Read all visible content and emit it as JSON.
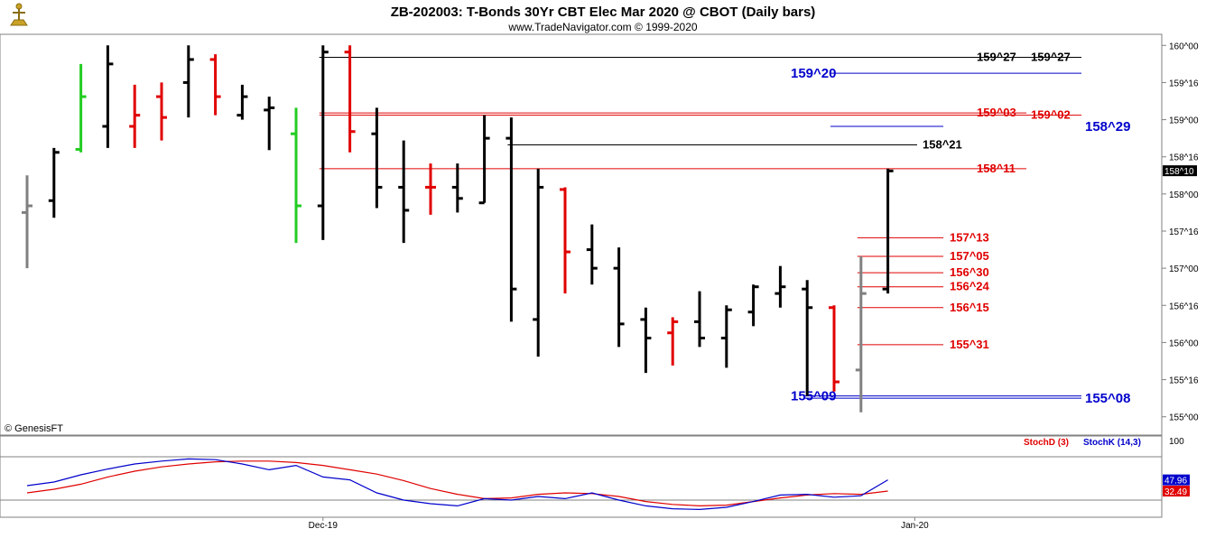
{
  "header": {
    "title": "ZB-202003:  T-Bonds 30Yr CBT Elec Mar 2020 @ CBOT  (Daily bars)",
    "subtitle": "www.TradeNavigator.com © 1999-2020"
  },
  "watermark": "© GenesisFT",
  "colors": {
    "up_bar": "#000000",
    "down_bar": "#e00000",
    "neutral_bar": "#808080",
    "highlight_bar": "#22cc22",
    "level_blue": "#0000cc",
    "level_red": "#e00000",
    "level_black": "#000000",
    "stoch_d": "#e00000",
    "stoch_k": "#0000cc"
  },
  "chart_data": [
    {
      "type": "ohlc",
      "title": "ZB-202003:  T-Bonds 30Yr CBT Elec Mar 2020 @ CBOT  (Daily bars)",
      "ylim": [
        154.875,
        160.125
      ],
      "yticks": [
        {
          "v": 155.0,
          "label": "155^00"
        },
        {
          "v": 155.5,
          "label": "155^16"
        },
        {
          "v": 156.0,
          "label": "156^00"
        },
        {
          "v": 156.5,
          "label": "156^16"
        },
        {
          "v": 157.0,
          "label": "157^00"
        },
        {
          "v": 157.5,
          "label": "157^16"
        },
        {
          "v": 158.0,
          "label": "158^00"
        },
        {
          "v": 158.5,
          "label": "158^16"
        },
        {
          "v": 159.0,
          "label": "159^00"
        },
        {
          "v": 159.5,
          "label": "159^16"
        },
        {
          "v": 160.0,
          "label": "160^00"
        }
      ],
      "xticks": [
        {
          "i": 11,
          "label": "Dec-19"
        },
        {
          "i": 33,
          "label": "Jan-20"
        }
      ],
      "last_price": {
        "v": 158.3125,
        "label": "158^10"
      },
      "bars": [
        {
          "o": 157.75,
          "h": 158.25,
          "l": 157.0,
          "c": 157.84,
          "color": "neutral"
        },
        {
          "o": 157.91,
          "h": 158.62,
          "l": 157.68,
          "c": 158.56,
          "color": "up"
        },
        {
          "o": 158.6,
          "h": 159.75,
          "l": 158.56,
          "c": 159.31,
          "color": "highlight"
        },
        {
          "o": 158.91,
          "h": 160.0,
          "l": 158.62,
          "c": 159.75,
          "color": "up"
        },
        {
          "o": 158.91,
          "h": 159.47,
          "l": 158.62,
          "c": 159.06,
          "color": "down"
        },
        {
          "o": 159.31,
          "h": 159.5,
          "l": 158.72,
          "c": 159.03,
          "color": "down"
        },
        {
          "o": 159.5,
          "h": 160.0,
          "l": 159.03,
          "c": 159.81,
          "color": "up"
        },
        {
          "o": 159.81,
          "h": 159.88,
          "l": 159.06,
          "c": 159.31,
          "color": "down"
        },
        {
          "o": 159.06,
          "h": 159.47,
          "l": 159.0,
          "c": 159.31,
          "color": "up"
        },
        {
          "o": 159.13,
          "h": 159.31,
          "l": 158.59,
          "c": 159.16,
          "color": "up"
        },
        {
          "o": 158.81,
          "h": 159.16,
          "l": 157.34,
          "c": 157.84,
          "color": "highlight"
        },
        {
          "o": 157.84,
          "h": 160.0,
          "l": 157.38,
          "c": 159.91,
          "color": "up"
        },
        {
          "o": 159.91,
          "h": 160.0,
          "l": 158.56,
          "c": 158.84,
          "color": "down"
        },
        {
          "o": 158.81,
          "h": 159.16,
          "l": 157.81,
          "c": 158.09,
          "color": "up"
        },
        {
          "o": 158.09,
          "h": 158.72,
          "l": 157.34,
          "c": 157.78,
          "color": "up"
        },
        {
          "o": 158.09,
          "h": 158.41,
          "l": 157.72,
          "c": 158.09,
          "color": "down"
        },
        {
          "o": 158.09,
          "h": 158.41,
          "l": 157.75,
          "c": 157.94,
          "color": "up"
        },
        {
          "o": 157.88,
          "h": 159.06,
          "l": 157.88,
          "c": 158.75,
          "color": "up"
        },
        {
          "o": 158.75,
          "h": 159.03,
          "l": 156.28,
          "c": 156.72,
          "color": "up"
        },
        {
          "o": 156.31,
          "h": 158.34,
          "l": 155.81,
          "c": 158.09,
          "color": "up"
        },
        {
          "o": 158.06,
          "h": 158.09,
          "l": 156.66,
          "c": 157.22,
          "color": "down"
        },
        {
          "o": 157.25,
          "h": 157.59,
          "l": 156.78,
          "c": 157.0,
          "color": "up"
        },
        {
          "o": 157.0,
          "h": 157.28,
          "l": 155.94,
          "c": 156.25,
          "color": "up"
        },
        {
          "o": 156.31,
          "h": 156.47,
          "l": 155.59,
          "c": 156.06,
          "color": "up"
        },
        {
          "o": 156.13,
          "h": 156.34,
          "l": 155.69,
          "c": 156.28,
          "color": "down"
        },
        {
          "o": 156.28,
          "h": 156.69,
          "l": 155.94,
          "c": 156.06,
          "color": "up"
        },
        {
          "o": 156.06,
          "h": 156.5,
          "l": 155.66,
          "c": 156.44,
          "color": "up"
        },
        {
          "o": 156.41,
          "h": 156.78,
          "l": 156.22,
          "c": 156.75,
          "color": "up"
        },
        {
          "o": 156.66,
          "h": 157.03,
          "l": 156.47,
          "c": 156.75,
          "color": "up"
        },
        {
          "o": 156.72,
          "h": 156.84,
          "l": 155.28,
          "c": 156.47,
          "color": "up"
        },
        {
          "o": 156.47,
          "h": 156.5,
          "l": 155.34,
          "c": 155.47,
          "color": "down"
        },
        {
          "o": 155.63,
          "h": 157.16,
          "l": 155.06,
          "c": 156.66,
          "color": "neutral"
        },
        {
          "o": 156.72,
          "h": 158.34,
          "l": 156.66,
          "c": 158.31,
          "color": "up"
        }
      ],
      "levels": [
        {
          "v": 159.84,
          "label": "159^27",
          "color": "black",
          "x_from_bar": 11,
          "label_pos": "mid"
        },
        {
          "v": 159.84,
          "label": "159^27",
          "color": "black",
          "x_from_bar": 11,
          "label_pos": "end"
        },
        {
          "v": 159.625,
          "label": "159^20",
          "color": "blue",
          "x_from_bar": 30,
          "label_pos": "start"
        },
        {
          "v": 159.09,
          "label": "159^03",
          "color": "red",
          "x_from_bar": 11,
          "label_pos": "mid"
        },
        {
          "v": 159.06,
          "label": "159^02",
          "color": "red",
          "x_from_bar": 11,
          "label_pos": "end"
        },
        {
          "v": 158.91,
          "label": "158^29",
          "color": "blue",
          "x_from_bar": 30,
          "label_pos": "after"
        },
        {
          "v": 158.66,
          "label": "158^21",
          "color": "black",
          "x_from_bar": 18,
          "label_pos": "after"
        },
        {
          "v": 158.34,
          "label": "158^11",
          "color": "red",
          "x_from_bar": 11,
          "label_pos": "mid"
        },
        {
          "v": 157.41,
          "label": "157^13",
          "color": "red",
          "x_from_bar": 31,
          "label_pos": "after"
        },
        {
          "v": 157.16,
          "label": "157^05",
          "color": "red",
          "x_from_bar": 31,
          "label_pos": "after"
        },
        {
          "v": 156.94,
          "label": "156^30",
          "color": "red",
          "x_from_bar": 31,
          "label_pos": "after"
        },
        {
          "v": 156.75,
          "label": "156^24",
          "color": "red",
          "x_from_bar": 31,
          "label_pos": "after"
        },
        {
          "v": 156.47,
          "label": "156^15",
          "color": "red",
          "x_from_bar": 31,
          "label_pos": "after"
        },
        {
          "v": 155.97,
          "label": "155^31",
          "color": "red",
          "x_from_bar": 31,
          "label_pos": "after"
        },
        {
          "v": 155.28,
          "label": "155^09",
          "color": "blue",
          "x_from_bar": 29,
          "label_pos": "start"
        },
        {
          "v": 155.25,
          "label": "155^08",
          "color": "blue",
          "x_from_bar": 29,
          "label_pos": "end"
        }
      ]
    },
    {
      "type": "line",
      "title": "",
      "legend": [
        {
          "name": "StochD (3)",
          "color": "red"
        },
        {
          "name": "StochK (14,3)",
          "color": "blue"
        }
      ],
      "ylim": [
        0,
        100
      ],
      "yticks": [
        {
          "v": 100,
          "label": "100"
        }
      ],
      "ref_levels": [
        80,
        20
      ],
      "series": [
        {
          "name": "StochD (3)",
          "color": "red",
          "values": [
            30,
            35,
            42,
            52,
            60,
            66,
            70,
            73,
            74,
            74,
            72,
            68,
            62,
            56,
            47,
            36,
            28,
            22,
            23,
            28,
            30,
            29,
            25,
            18,
            14,
            12,
            13,
            18,
            23,
            27,
            29,
            28,
            32.49
          ]
        },
        {
          "name": "StochK (14,3)",
          "color": "blue",
          "values": [
            40,
            45,
            55,
            63,
            70,
            74,
            77,
            76,
            70,
            62,
            68,
            52,
            48,
            30,
            20,
            15,
            12,
            22,
            20,
            25,
            22,
            30,
            20,
            12,
            8,
            7,
            10,
            18,
            27,
            28,
            24,
            26,
            47.96
          ]
        }
      ],
      "last_values": [
        {
          "v": 47.96,
          "label": "47.96",
          "color": "blue"
        },
        {
          "v": 32.49,
          "label": "32.49",
          "color": "red"
        }
      ]
    }
  ]
}
